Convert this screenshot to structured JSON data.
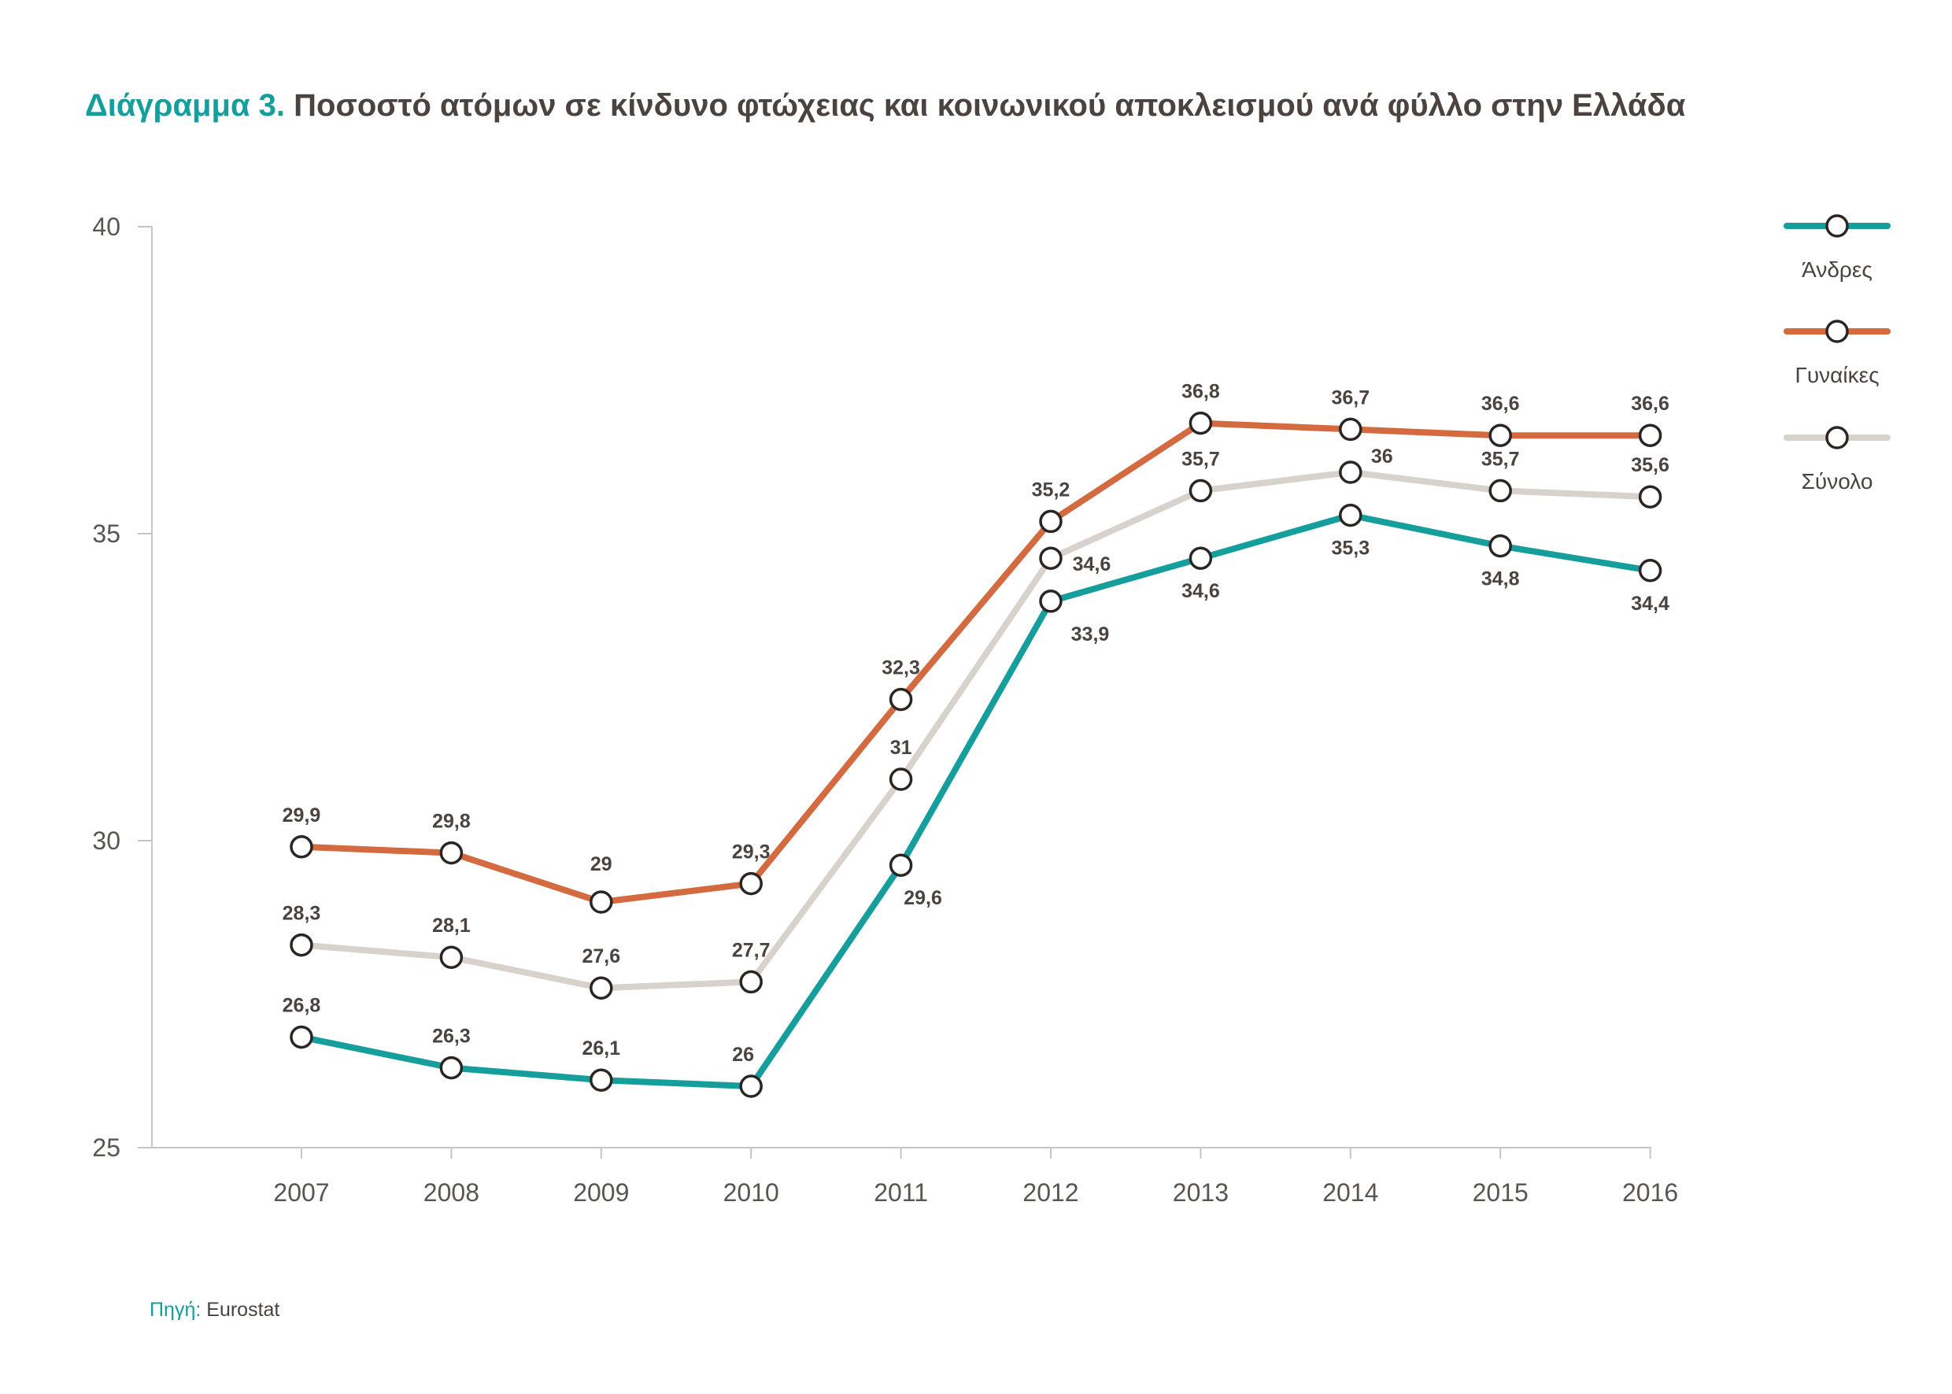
{
  "header": {
    "title_lead": "Διάγραμμα 3.",
    "title_rest": "Ποσοστό ατόμων σε κίνδυνο φτώχειας και κοινωνικού αποκλεισμού ανά φύλλο στην Ελλάδα"
  },
  "footer": {
    "source_label": "Πηγή:",
    "source_value": "Eurostat"
  },
  "chart_data": {
    "type": "line",
    "title": "Διάγραμμα 3. Ποσοστό ατόμων σε κίνδυνο φτώχειας και κοινωνικού αποκλεισμού ανά φύλλο στην Ελλάδα",
    "xlabel": "",
    "ylabel": "",
    "categories": [
      "2007",
      "2008",
      "2009",
      "2010",
      "2011",
      "2012",
      "2013",
      "2014",
      "2015",
      "2016"
    ],
    "ylim": [
      25,
      40
    ],
    "yticks": [
      "25",
      "30",
      "35",
      "40"
    ],
    "grid": false,
    "legend_position": "right",
    "series": [
      {
        "name": "Άνδρες",
        "color": "#159e9c",
        "values": [
          26.8,
          26.3,
          26.1,
          26,
          29.6,
          33.9,
          34.6,
          35.3,
          34.8,
          34.4
        ],
        "labels": [
          "26,8",
          "26,3",
          "26,1",
          "26",
          "29,6",
          "33,9",
          "34,6",
          "35,3",
          "34,8",
          "34,4"
        ]
      },
      {
        "name": "Γυναίκες",
        "color": "#d46a3f",
        "values": [
          29.9,
          29.8,
          29,
          29.3,
          32.3,
          35.2,
          36.8,
          36.7,
          36.6,
          36.6
        ],
        "labels": [
          "29,9",
          "29,8",
          "29",
          "29,3",
          "32,3",
          "35,2",
          "36,8",
          "36,7",
          "36,6",
          "36,6"
        ]
      },
      {
        "name": "Σύνολο",
        "color": "#d8d2cd",
        "values": [
          28.3,
          28.1,
          27.6,
          27.7,
          31,
          34.6,
          35.7,
          36,
          35.7,
          35.6
        ],
        "labels": [
          "28,3",
          "28,1",
          "27,6",
          "27,7",
          "31",
          "34,6",
          "35,7",
          "36",
          "35,7",
          "35,6"
        ]
      }
    ]
  }
}
